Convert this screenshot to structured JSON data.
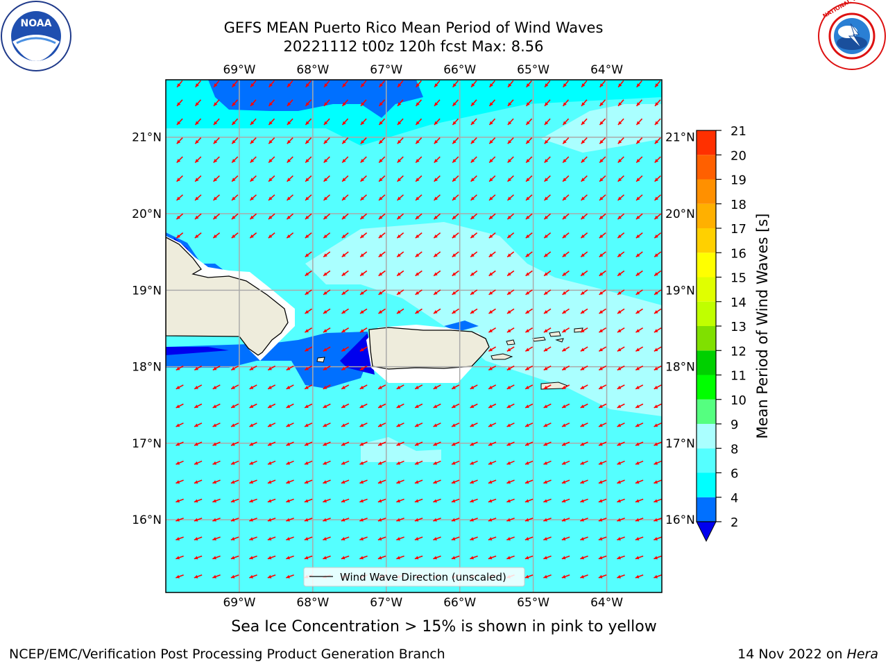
{
  "title_line1": "GEFS MEAN Puerto Rico Mean Period of Wind Waves",
  "title_line2": "20221112 t00z 120h fcst   Max: 8.56",
  "map": {
    "lon_ticks": [
      "69°W",
      "68°W",
      "67°W",
      "66°W",
      "65°W",
      "64°W"
    ],
    "lat_ticks": [
      "21°N",
      "20°N",
      "19°N",
      "18°N",
      "17°N",
      "16°N"
    ],
    "lon_values": [
      -69,
      -68,
      -67,
      -66,
      -65,
      -64
    ],
    "lat_values": [
      21,
      20,
      19,
      18,
      17,
      16
    ],
    "lon_range": [
      -70,
      -63.25
    ],
    "lat_range": [
      15.05,
      21.75
    ],
    "legend_label": "Wind Wave Direction (unscaled)",
    "arrow_color": "#ff0000"
  },
  "colorbar": {
    "label": "Mean Period of Wind Waves [s]",
    "levels": [
      "2",
      "4",
      "6",
      "8",
      "9",
      "10",
      "11",
      "12",
      "13",
      "14",
      "15",
      "16",
      "17",
      "18",
      "19",
      "20",
      "21"
    ],
    "colors": [
      "#0070ff",
      "#00ffff",
      "#55ffff",
      "#aaffff",
      "#55ff80",
      "#00ff00",
      "#00d000",
      "#80e000",
      "#c0ff00",
      "#e0ff00",
      "#ffff00",
      "#ffd000",
      "#ffb000",
      "#ff9000",
      "#ff6000",
      "#ff3000"
    ],
    "under_color": "#0000ee"
  },
  "footer": {
    "subtitle": "Sea Ice Concentration > 15% is shown in pink to yellow",
    "credit": "NCEP/EMC/Verification Post Processing Product Generation Branch",
    "date_prefix": "14 Nov 2022 on ",
    "date_machine": "Hera"
  },
  "logos": {
    "noaa_text": "NOAA",
    "nws_text": "NATIONAL WEATHER SERVICE"
  }
}
